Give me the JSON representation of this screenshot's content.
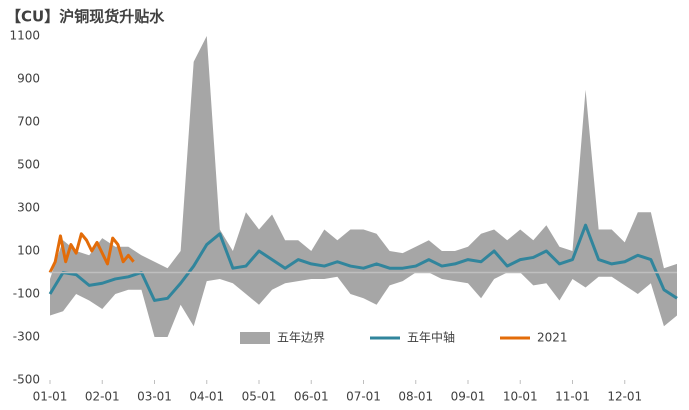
{
  "chart_data": {
    "type": "line",
    "title": "【CU】沪铜现货升贴水",
    "x": [
      0,
      0.25,
      0.5,
      0.75,
      1,
      1.25,
      1.5,
      1.75,
      2,
      2.25,
      2.5,
      2.75,
      3,
      3.25,
      3.5,
      3.75,
      4,
      4.25,
      4.5,
      4.75,
      5,
      5.25,
      5.5,
      5.75,
      6,
      6.25,
      6.5,
      6.75,
      7,
      7.25,
      7.5,
      7.75,
      8,
      8.25,
      8.5,
      8.75,
      9,
      9.25,
      9.5,
      9.75,
      10,
      10.25,
      10.5,
      10.75,
      11,
      11.25,
      11.5,
      11.75,
      12
    ],
    "series": [
      {
        "name": "五年边界",
        "color": "#a6a6a6",
        "upper": [
          -30,
          150,
          100,
          80,
          160,
          120,
          120,
          80,
          50,
          20,
          100,
          980,
          1100,
          200,
          100,
          280,
          200,
          270,
          150,
          150,
          100,
          200,
          150,
          200,
          200,
          180,
          100,
          90,
          120,
          150,
          100,
          100,
          120,
          180,
          200,
          150,
          200,
          150,
          220,
          120,
          100,
          850,
          200,
          200,
          140,
          280,
          280,
          20,
          40
        ],
        "lower": [
          -200,
          -180,
          -100,
          -130,
          -170,
          -100,
          -80,
          -80,
          -300,
          -300,
          -150,
          -250,
          -40,
          -30,
          -50,
          -100,
          -150,
          -80,
          -50,
          -40,
          -30,
          -30,
          -20,
          -100,
          -120,
          -150,
          -60,
          -40,
          0,
          0,
          -30,
          -40,
          -50,
          -120,
          -30,
          0,
          0,
          -60,
          -50,
          -130,
          -30,
          -70,
          -20,
          -20,
          -60,
          -100,
          -50,
          -250,
          -200
        ]
      },
      {
        "name": "五年中轴",
        "color": "#31859c",
        "values": [
          -100,
          0,
          -10,
          -60,
          -50,
          -30,
          -20,
          0,
          -130,
          -120,
          -50,
          30,
          130,
          180,
          20,
          30,
          100,
          60,
          20,
          60,
          40,
          30,
          50,
          30,
          20,
          40,
          20,
          20,
          30,
          60,
          30,
          40,
          60,
          50,
          100,
          30,
          60,
          70,
          100,
          40,
          60,
          220,
          60,
          40,
          50,
          80,
          60,
          -80,
          -120
        ]
      },
      {
        "name": "2021",
        "color": "#e36c09",
        "x": [
          0,
          0.1,
          0.2,
          0.3,
          0.4,
          0.5,
          0.6,
          0.7,
          0.8,
          0.9,
          1,
          1.1,
          1.2,
          1.3,
          1.4,
          1.5,
          1.6
        ],
        "values": [
          0,
          50,
          170,
          50,
          130,
          90,
          180,
          150,
          100,
          140,
          90,
          40,
          160,
          130,
          50,
          80,
          50
        ]
      }
    ],
    "xlim": [
      0,
      12
    ],
    "xticks": [
      {
        "value": 0,
        "label": "01-01"
      },
      {
        "value": 1,
        "label": "02-01"
      },
      {
        "value": 2,
        "label": "03-01"
      },
      {
        "value": 3,
        "label": "04-01"
      },
      {
        "value": 4,
        "label": "05-01"
      },
      {
        "value": 5,
        "label": "06-01"
      },
      {
        "value": 6,
        "label": "07-01"
      },
      {
        "value": 7,
        "label": "08-01"
      },
      {
        "value": 8,
        "label": "09-01"
      },
      {
        "value": 9,
        "label": "10-01"
      },
      {
        "value": 10,
        "label": "11-01"
      },
      {
        "value": 11,
        "label": "12-01"
      }
    ],
    "ylim": [
      -500,
      1100
    ],
    "yticks": [
      -500,
      -300,
      -100,
      100,
      300,
      500,
      700,
      900,
      1100
    ],
    "grid": false,
    "legend": "bottom"
  }
}
